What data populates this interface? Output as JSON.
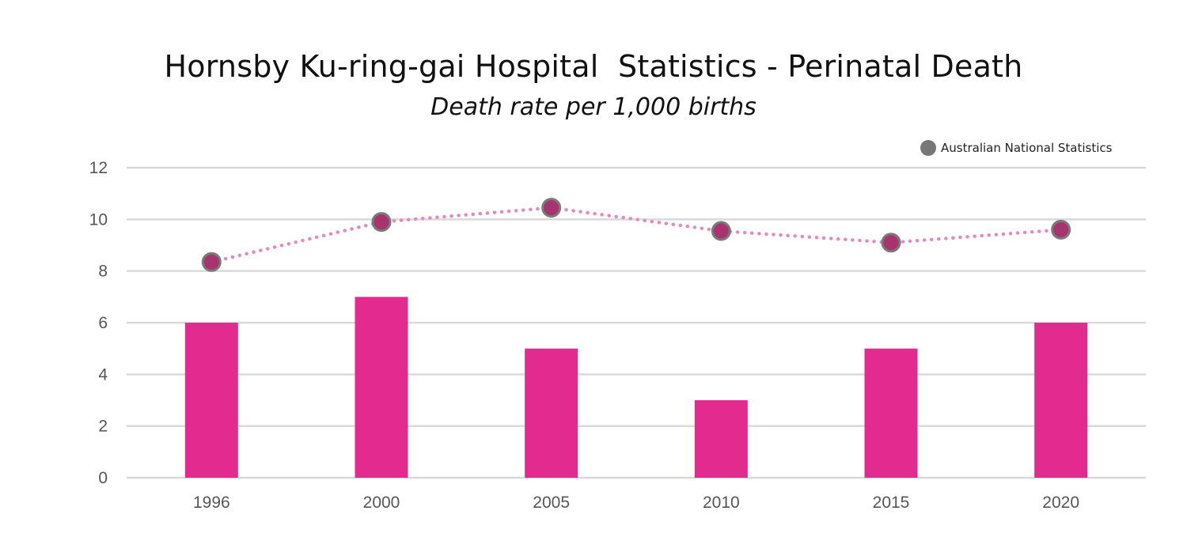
{
  "chart_data": {
    "type": "bar",
    "title": "Hornsby Ku-ring-gai Hospital  Statistics - Perinatal Death",
    "subtitle": "Death rate per 1,000 births",
    "xlabel": "",
    "ylabel": "",
    "categories": [
      "1996",
      "2000",
      "2005",
      "2010",
      "2015",
      "2020"
    ],
    "ylim": [
      0,
      12
    ],
    "yticks": [
      0,
      2,
      4,
      6,
      8,
      10,
      12
    ],
    "grid": true,
    "legend_position": "top-right",
    "series": [
      {
        "type": "bar",
        "values": [
          6,
          7,
          5,
          3,
          5,
          6
        ],
        "color": "#e32b8f"
      },
      {
        "type": "line",
        "name": "Australian National Statistics",
        "values": [
          8.35,
          9.9,
          10.45,
          9.55,
          9.1,
          9.6
        ],
        "line_color": "#e08cbd",
        "line_style": "dotted",
        "marker_fill": "#a8336f",
        "marker_stroke": "#7a7a7a",
        "legend_color": "#777777"
      }
    ]
  }
}
